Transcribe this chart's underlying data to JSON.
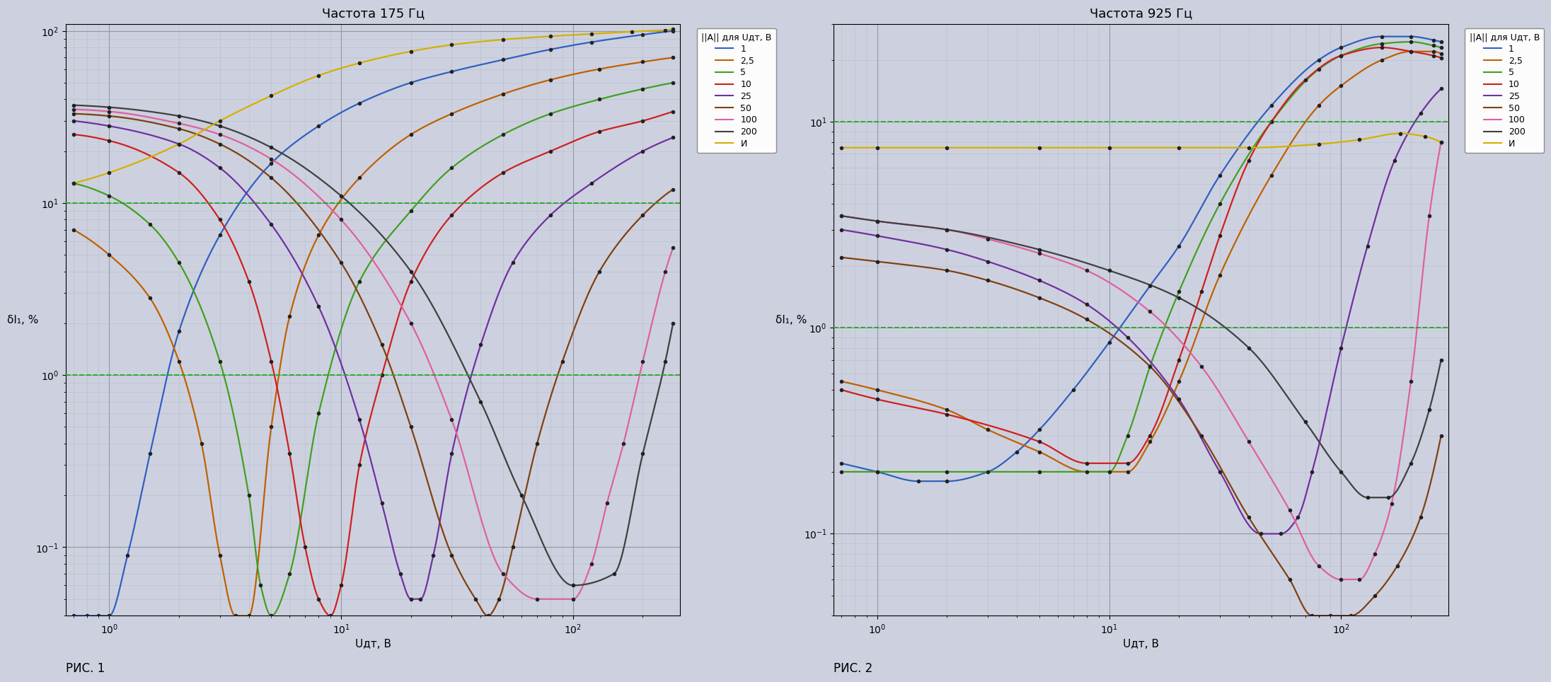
{
  "fig1": {
    "title": "Частота 175 Гц",
    "xlabel": "Uдт, В",
    "ylabel": "δI₁, %",
    "xmin": 0.65,
    "xmax": 290,
    "ymin": 0.04,
    "ymax": 110,
    "dashed_lines": [
      10.0,
      1.0
    ],
    "legend_title": "||A|| для Uдт, В",
    "series": [
      {
        "label": "1",
        "color": "#3060C0",
        "data_x": [
          0.7,
          0.8,
          0.9,
          1.0,
          1.2,
          1.5,
          2.0,
          3.0,
          5.0,
          8.0,
          12.0,
          20.0,
          30.0,
          50.0,
          80.0,
          120.0,
          200.0,
          270.0
        ],
        "data_y": [
          0.04,
          0.04,
          0.04,
          0.04,
          0.09,
          0.35,
          1.8,
          6.5,
          17.0,
          28.0,
          38.0,
          50.0,
          58.0,
          68.0,
          78.0,
          86.0,
          95.0,
          100.0
        ]
      },
      {
        "label": "2,5",
        "color": "#C06000",
        "data_x": [
          0.7,
          1.0,
          1.5,
          2.0,
          2.5,
          3.0,
          3.5,
          4.0,
          5.0,
          6.0,
          8.0,
          12.0,
          20.0,
          30.0,
          50.0,
          80.0,
          130.0,
          200.0,
          270.0
        ],
        "data_y": [
          7.0,
          5.0,
          2.8,
          1.2,
          0.4,
          0.09,
          0.04,
          0.04,
          0.5,
          2.2,
          6.5,
          14.0,
          25.0,
          33.0,
          43.0,
          52.0,
          60.0,
          66.0,
          70.0
        ]
      },
      {
        "label": "5",
        "color": "#40A020",
        "data_x": [
          0.7,
          1.0,
          1.5,
          2.0,
          3.0,
          4.0,
          4.5,
          5.0,
          6.0,
          8.0,
          12.0,
          20.0,
          30.0,
          50.0,
          80.0,
          130.0,
          200.0,
          270.0
        ],
        "data_y": [
          13.0,
          11.0,
          7.5,
          4.5,
          1.2,
          0.2,
          0.06,
          0.04,
          0.07,
          0.6,
          3.5,
          9.0,
          16.0,
          25.0,
          33.0,
          40.0,
          46.0,
          50.0
        ]
      },
      {
        "label": "10",
        "color": "#D02020",
        "data_x": [
          0.7,
          1.0,
          2.0,
          3.0,
          4.0,
          5.0,
          6.0,
          7.0,
          8.0,
          9.0,
          10.0,
          12.0,
          15.0,
          20.0,
          30.0,
          50.0,
          80.0,
          130.0,
          200.0,
          270.0
        ],
        "data_y": [
          25.0,
          23.0,
          15.0,
          8.0,
          3.5,
          1.2,
          0.35,
          0.1,
          0.05,
          0.04,
          0.06,
          0.3,
          1.0,
          3.5,
          8.5,
          15.0,
          20.0,
          26.0,
          30.0,
          34.0
        ]
      },
      {
        "label": "25",
        "color": "#7030A0",
        "data_x": [
          0.7,
          1.0,
          2.0,
          3.0,
          5.0,
          8.0,
          12.0,
          15.0,
          18.0,
          20.0,
          22.0,
          25.0,
          30.0,
          40.0,
          55.0,
          80.0,
          120.0,
          200.0,
          270.0
        ],
        "data_y": [
          30.0,
          28.0,
          22.0,
          16.0,
          7.5,
          2.5,
          0.55,
          0.18,
          0.07,
          0.05,
          0.05,
          0.09,
          0.35,
          1.5,
          4.5,
          8.5,
          13.0,
          20.0,
          24.0
        ]
      },
      {
        "label": "50",
        "color": "#804010",
        "data_x": [
          0.7,
          1.0,
          2.0,
          3.0,
          5.0,
          10.0,
          15.0,
          20.0,
          30.0,
          38.0,
          43.0,
          48.0,
          55.0,
          70.0,
          90.0,
          130.0,
          200.0,
          270.0
        ],
        "data_y": [
          33.0,
          32.0,
          27.0,
          22.0,
          14.0,
          4.5,
          1.5,
          0.5,
          0.09,
          0.05,
          0.04,
          0.05,
          0.1,
          0.4,
          1.2,
          4.0,
          8.5,
          12.0
        ]
      },
      {
        "label": "100",
        "color": "#E060A0",
        "data_x": [
          0.7,
          1.0,
          2.0,
          3.0,
          5.0,
          10.0,
          20.0,
          30.0,
          50.0,
          70.0,
          100.0,
          120.0,
          140.0,
          165.0,
          200.0,
          250.0,
          270.0
        ],
        "data_y": [
          35.0,
          34.0,
          29.0,
          25.0,
          18.0,
          8.0,
          2.0,
          0.55,
          0.07,
          0.05,
          0.05,
          0.08,
          0.18,
          0.4,
          1.2,
          4.0,
          5.5
        ]
      },
      {
        "label": "200",
        "color": "#404040",
        "data_x": [
          0.7,
          1.0,
          2.0,
          3.0,
          5.0,
          10.0,
          20.0,
          40.0,
          60.0,
          100.0,
          150.0,
          200.0,
          250.0,
          270.0
        ],
        "data_y": [
          37.0,
          36.0,
          32.0,
          28.0,
          21.0,
          11.0,
          4.0,
          0.7,
          0.2,
          0.06,
          0.07,
          0.35,
          1.2,
          2.0
        ]
      },
      {
        "label": "И",
        "color": "#D4B000",
        "data_x": [
          0.7,
          1.0,
          2.0,
          3.0,
          5.0,
          8.0,
          12.0,
          20.0,
          30.0,
          50.0,
          80.0,
          120.0,
          180.0,
          250.0,
          270.0
        ],
        "data_y": [
          13.0,
          15.0,
          22.0,
          30.0,
          42.0,
          55.0,
          65.0,
          76.0,
          83.0,
          89.0,
          93.0,
          96.0,
          99.0,
          101.0,
          102.0
        ]
      }
    ]
  },
  "fig2": {
    "title": "Частота 925 Гц",
    "xlabel": "Uдт, В",
    "ylabel": "δI₁, %",
    "xmin": 0.65,
    "xmax": 290,
    "ymin": 0.04,
    "ymax": 30,
    "dashed_lines": [
      10.0,
      1.0
    ],
    "legend_title": "||A|| для Uдт, В",
    "series": [
      {
        "label": "1",
        "color": "#3060C0",
        "data_x": [
          0.7,
          1.0,
          1.5,
          2.0,
          3.0,
          4.0,
          5.0,
          7.0,
          10.0,
          15.0,
          20.0,
          30.0,
          50.0,
          80.0,
          100.0,
          150.0,
          200.0,
          250.0,
          270.0
        ],
        "data_y": [
          0.22,
          0.2,
          0.18,
          0.18,
          0.2,
          0.25,
          0.32,
          0.5,
          0.85,
          1.6,
          2.5,
          5.5,
          12.0,
          20.0,
          23.0,
          26.0,
          26.0,
          25.0,
          24.5
        ]
      },
      {
        "label": "2,5",
        "color": "#C06000",
        "data_x": [
          0.7,
          1.0,
          2.0,
          3.0,
          5.0,
          8.0,
          12.0,
          15.0,
          20.0,
          30.0,
          50.0,
          80.0,
          100.0,
          150.0,
          200.0,
          250.0,
          270.0
        ],
        "data_y": [
          0.55,
          0.5,
          0.4,
          0.32,
          0.25,
          0.2,
          0.2,
          0.28,
          0.55,
          1.8,
          5.5,
          12.0,
          15.0,
          20.0,
          22.0,
          22.0,
          21.5
        ]
      },
      {
        "label": "5",
        "color": "#40A020",
        "data_x": [
          0.7,
          1.0,
          2.0,
          5.0,
          10.0,
          12.0,
          15.0,
          20.0,
          30.0,
          50.0,
          80.0,
          100.0,
          150.0,
          200.0,
          250.0,
          270.0
        ],
        "data_y": [
          0.2,
          0.2,
          0.2,
          0.2,
          0.2,
          0.3,
          0.65,
          1.5,
          4.0,
          10.0,
          18.0,
          21.0,
          24.0,
          24.5,
          23.5,
          23.0
        ]
      },
      {
        "label": "10",
        "color": "#D02020",
        "data_x": [
          0.7,
          1.0,
          2.0,
          5.0,
          8.0,
          12.0,
          15.0,
          20.0,
          25.0,
          30.0,
          40.0,
          50.0,
          70.0,
          100.0,
          150.0,
          200.0,
          250.0,
          270.0
        ],
        "data_y": [
          0.5,
          0.45,
          0.38,
          0.28,
          0.22,
          0.22,
          0.3,
          0.7,
          1.5,
          2.8,
          6.5,
          10.0,
          16.0,
          21.0,
          23.0,
          22.0,
          21.0,
          20.5
        ]
      },
      {
        "label": "25",
        "color": "#7030A0",
        "data_x": [
          0.7,
          1.0,
          2.0,
          3.0,
          5.0,
          8.0,
          12.0,
          20.0,
          30.0,
          45.0,
          55.0,
          65.0,
          75.0,
          100.0,
          130.0,
          170.0,
          220.0,
          270.0
        ],
        "data_y": [
          3.0,
          2.8,
          2.4,
          2.1,
          1.7,
          1.3,
          0.9,
          0.45,
          0.2,
          0.1,
          0.1,
          0.12,
          0.2,
          0.8,
          2.5,
          6.5,
          11.0,
          14.5
        ]
      },
      {
        "label": "50",
        "color": "#804010",
        "data_x": [
          0.7,
          1.0,
          2.0,
          3.0,
          5.0,
          8.0,
          15.0,
          25.0,
          40.0,
          60.0,
          75.0,
          90.0,
          110.0,
          140.0,
          175.0,
          220.0,
          270.0
        ],
        "data_y": [
          2.2,
          2.1,
          1.9,
          1.7,
          1.4,
          1.1,
          0.65,
          0.3,
          0.12,
          0.06,
          0.04,
          0.04,
          0.04,
          0.05,
          0.07,
          0.12,
          0.3
        ]
      },
      {
        "label": "100",
        "color": "#E060A0",
        "data_x": [
          0.7,
          1.0,
          2.0,
          3.0,
          5.0,
          8.0,
          15.0,
          25.0,
          40.0,
          60.0,
          80.0,
          100.0,
          120.0,
          140.0,
          165.0,
          200.0,
          240.0,
          270.0
        ],
        "data_y": [
          3.5,
          3.3,
          3.0,
          2.7,
          2.3,
          1.9,
          1.2,
          0.65,
          0.28,
          0.13,
          0.07,
          0.06,
          0.06,
          0.08,
          0.14,
          0.55,
          3.5,
          8.0
        ]
      },
      {
        "label": "200",
        "color": "#404040",
        "data_x": [
          0.7,
          1.0,
          2.0,
          5.0,
          10.0,
          20.0,
          40.0,
          70.0,
          100.0,
          130.0,
          160.0,
          200.0,
          240.0,
          270.0
        ],
        "data_y": [
          3.5,
          3.3,
          3.0,
          2.4,
          1.9,
          1.4,
          0.8,
          0.35,
          0.2,
          0.15,
          0.15,
          0.22,
          0.4,
          0.7
        ]
      },
      {
        "label": "И",
        "color": "#D4B000",
        "data_x": [
          0.7,
          1.0,
          2.0,
          5.0,
          10.0,
          20.0,
          40.0,
          80.0,
          120.0,
          180.0,
          230.0,
          270.0
        ],
        "data_y": [
          7.5,
          7.5,
          7.5,
          7.5,
          7.5,
          7.5,
          7.5,
          7.8,
          8.2,
          8.8,
          8.5,
          8.0
        ]
      }
    ]
  },
  "background_color": "#CDD1DF",
  "plot_bg_color": "#CDD1DF",
  "grid_major_color": "#9098A8",
  "grid_minor_color": "#B0B8C8",
  "dashed_color": "#20AA20",
  "fig_label1": "РИС. 1",
  "fig_label2": "РИС. 2",
  "dot_color": "#222222"
}
